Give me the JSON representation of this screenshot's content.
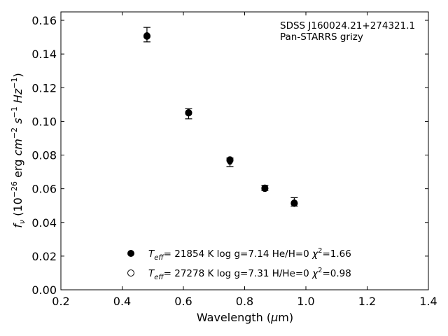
{
  "chart_data": {
    "type": "scatter",
    "annotation_lines": [
      "SDSS J160024.21+274321.1",
      "Pan-STARRS grizy"
    ],
    "xlabel": "Wavelength (μm)",
    "ylabel": "f_ν (10^-26 erg cm^-2 s^-1 Hz^-1)",
    "xlim": [
      0.2,
      1.4
    ],
    "ylim": [
      0.0,
      0.165
    ],
    "x_ticks": [
      0.2,
      0.4,
      0.6,
      0.8,
      1.0,
      1.2,
      1.4
    ],
    "y_ticks": [
      0.0,
      0.02,
      0.04,
      0.06,
      0.08,
      0.1,
      0.12,
      0.14,
      0.16
    ],
    "x_tick_labels": [
      "0.2",
      "0.4",
      "0.6",
      "0.8",
      "1.0",
      "1.2",
      "1.4"
    ],
    "y_tick_labels": [
      "0.00",
      "0.02",
      "0.04",
      "0.06",
      "0.08",
      "0.10",
      "0.12",
      "0.14",
      "0.16"
    ],
    "grid": false,
    "legend_position": "lower-center",
    "observed": {
      "points": [
        {
          "x": 0.481,
          "y": 0.1515,
          "err": 0.0043
        },
        {
          "x": 0.617,
          "y": 0.1045,
          "err": 0.003
        },
        {
          "x": 0.752,
          "y": 0.0757,
          "err": 0.0025
        },
        {
          "x": 0.866,
          "y": 0.0605,
          "err": 0.0015
        },
        {
          "x": 0.962,
          "y": 0.0522,
          "err": 0.0025
        }
      ]
    },
    "models": [
      {
        "marker": "filled",
        "points": [
          {
            "x": 0.481,
            "y": 0.1505
          },
          {
            "x": 0.617,
            "y": 0.1052
          },
          {
            "x": 0.752,
            "y": 0.0772
          },
          {
            "x": 0.866,
            "y": 0.0604
          },
          {
            "x": 0.962,
            "y": 0.0515
          }
        ]
      },
      {
        "marker": "open",
        "points": [
          {
            "x": 0.481,
            "y": 0.1508
          },
          {
            "x": 0.617,
            "y": 0.105
          },
          {
            "x": 0.752,
            "y": 0.0768
          },
          {
            "x": 0.866,
            "y": 0.0602
          },
          {
            "x": 0.962,
            "y": 0.0513
          }
        ]
      }
    ],
    "legend": [
      {
        "marker": "filled",
        "teff": "= 21854 K",
        "logg": "log g=7.14",
        "comp": "He/H=0",
        "chi2": "=1.66"
      },
      {
        "marker": "open",
        "teff": "= 27278 K",
        "logg": "log g=7.31",
        "comp": "H/He=0",
        "chi2": "=0.98"
      }
    ]
  }
}
